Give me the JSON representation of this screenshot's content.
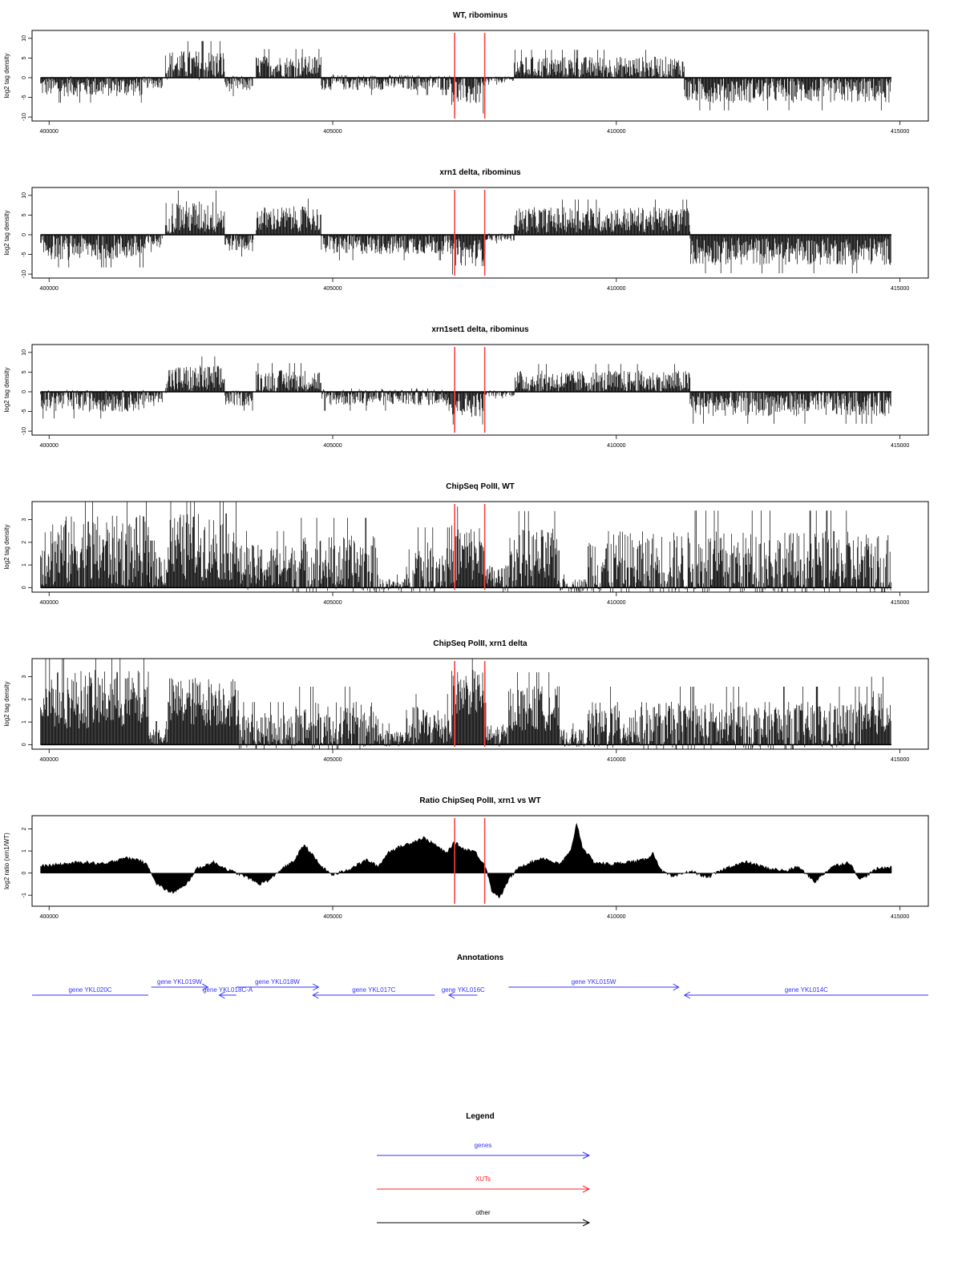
{
  "chart_data": [
    {
      "type": "bar",
      "title": "WT, ribominus",
      "ylabel": "log2 tag density",
      "ylim": [
        -11,
        12
      ],
      "yticks": [
        -10,
        -5,
        0,
        5,
        10
      ],
      "yticklabels": [
        "-10",
        "-5",
        "0",
        "5",
        "10"
      ],
      "xlim": [
        399700,
        415500
      ],
      "xticks": [
        400000,
        405000,
        410000,
        415000
      ],
      "xticklabels": [
        "400000",
        "405000",
        "410000",
        "415000"
      ],
      "marker_lines_x": [
        407150,
        407680
      ],
      "marker_color": "#ff4040",
      "segments": [
        {
          "x": [
            399850,
            401700
          ],
          "mean": -2.2,
          "amp": 2.6
        },
        {
          "x": [
            401700,
            402000
          ],
          "mean": -1.2,
          "amp": 1.5
        },
        {
          "x": [
            402050,
            403100
          ],
          "mean": 3.2,
          "amp": 3.8
        },
        {
          "x": [
            403100,
            403600
          ],
          "mean": -1.5,
          "amp": 2.0
        },
        {
          "x": [
            403650,
            404800
          ],
          "mean": 2.8,
          "amp": 2.8
        },
        {
          "x": [
            404800,
            407100
          ],
          "mean": -1.2,
          "amp": 2.0
        },
        {
          "x": [
            407100,
            407700
          ],
          "mean": -3.5,
          "amp": 3.5
        },
        {
          "x": [
            407700,
            408200
          ],
          "mean": -0.5,
          "amp": 0.8
        },
        {
          "x": [
            408200,
            411200
          ],
          "mean": 2.6,
          "amp": 2.8
        },
        {
          "x": [
            411200,
            414850
          ],
          "mean": -3.2,
          "amp": 3.2
        }
      ]
    },
    {
      "type": "bar",
      "title": "xrn1 delta, ribominus",
      "ylabel": "log2 tag density",
      "ylim": [
        -11,
        12
      ],
      "yticks": [
        -10,
        -5,
        0,
        5,
        10
      ],
      "yticklabels": [
        "-10",
        "-5",
        "0",
        "5",
        "10"
      ],
      "xlim": [
        399700,
        415500
      ],
      "xticks": [
        400000,
        405000,
        410000,
        415000
      ],
      "xticklabels": [
        "400000",
        "405000",
        "410000",
        "415000"
      ],
      "marker_lines_x": [
        407150,
        407680
      ],
      "marker_color": "#ff4040",
      "segments": [
        {
          "x": [
            399850,
            401700
          ],
          "mean": -3.2,
          "amp": 3.2
        },
        {
          "x": [
            401700,
            402000
          ],
          "mean": -1.5,
          "amp": 1.8
        },
        {
          "x": [
            402050,
            403100
          ],
          "mean": 4.5,
          "amp": 4.2
        },
        {
          "x": [
            403100,
            403600
          ],
          "mean": -2.0,
          "amp": 2.2
        },
        {
          "x": [
            403650,
            404800
          ],
          "mean": 4.0,
          "amp": 3.2
        },
        {
          "x": [
            404800,
            407100
          ],
          "mean": -2.5,
          "amp": 2.5
        },
        {
          "x": [
            407100,
            407700
          ],
          "mean": -4.5,
          "amp": 3.5
        },
        {
          "x": [
            407700,
            408200
          ],
          "mean": -0.6,
          "amp": 1.0
        },
        {
          "x": [
            408200,
            411300
          ],
          "mean": 3.8,
          "amp": 3.2
        },
        {
          "x": [
            411300,
            414850
          ],
          "mean": -4.2,
          "amp": 3.5
        }
      ]
    },
    {
      "type": "bar",
      "title": "xrn1set1 delta, ribominus",
      "ylabel": "log2 tag density",
      "ylim": [
        -11,
        12
      ],
      "yticks": [
        -10,
        -5,
        0,
        5,
        10
      ],
      "yticklabels": [
        "-10",
        "-5",
        "0",
        "5",
        "10"
      ],
      "xlim": [
        399700,
        415500
      ],
      "xticks": [
        400000,
        405000,
        410000,
        415000
      ],
      "xticklabels": [
        "400000",
        "405000",
        "410000",
        "415000"
      ],
      "marker_lines_x": [
        407150,
        407680
      ],
      "marker_color": "#ff4040",
      "segments": [
        {
          "x": [
            399850,
            401700
          ],
          "mean": -2.3,
          "amp": 2.8
        },
        {
          "x": [
            401700,
            402000
          ],
          "mean": -1.2,
          "amp": 1.5
        },
        {
          "x": [
            402050,
            403100
          ],
          "mean": 3.2,
          "amp": 3.6
        },
        {
          "x": [
            403100,
            403600
          ],
          "mean": -1.6,
          "amp": 2.0
        },
        {
          "x": [
            403650,
            404800
          ],
          "mean": 2.8,
          "amp": 2.8
        },
        {
          "x": [
            404800,
            407100
          ],
          "mean": -1.3,
          "amp": 2.2
        },
        {
          "x": [
            407100,
            407700
          ],
          "mean": -3.2,
          "amp": 3.2
        },
        {
          "x": [
            407700,
            408200
          ],
          "mean": -0.4,
          "amp": 0.8
        },
        {
          "x": [
            408200,
            411300
          ],
          "mean": 2.6,
          "amp": 2.8
        },
        {
          "x": [
            411300,
            414850
          ],
          "mean": -3.0,
          "amp": 3.2
        }
      ]
    },
    {
      "type": "bar",
      "title": "ChipSeq PolII, WT",
      "ylabel": "log2 tag density",
      "ylim": [
        -0.2,
        3.8
      ],
      "yticks": [
        0,
        1,
        2,
        3
      ],
      "yticklabels": [
        "0",
        "1",
        "2",
        "3"
      ],
      "xlim": [
        399700,
        415500
      ],
      "xticks": [
        400000,
        405000,
        410000,
        415000
      ],
      "xticklabels": [
        "400000",
        "405000",
        "410000",
        "415000"
      ],
      "marker_lines_x": [
        407150,
        407680
      ],
      "marker_color": "#ff4040",
      "segments": [
        {
          "x": [
            399850,
            401750
          ],
          "mean": 1.6,
          "amp": 1.6
        },
        {
          "x": [
            401750,
            402100
          ],
          "mean": 0.8,
          "amp": 0.8
        },
        {
          "x": [
            402100,
            403300
          ],
          "mean": 1.8,
          "amp": 1.5
        },
        {
          "x": [
            403300,
            404300
          ],
          "mean": 0.9,
          "amp": 1.0
        },
        {
          "x": [
            404300,
            405800
          ],
          "mean": 1.0,
          "amp": 1.3
        },
        {
          "x": [
            405800,
            406300
          ],
          "mean": 0.1,
          "amp": 0.3
        },
        {
          "x": [
            406300,
            407100
          ],
          "mean": 0.9,
          "amp": 1.1
        },
        {
          "x": [
            407100,
            407700
          ],
          "mean": 1.5,
          "amp": 1.3
        },
        {
          "x": [
            407700,
            408100
          ],
          "mean": 0.4,
          "amp": 0.6
        },
        {
          "x": [
            408100,
            409000
          ],
          "mean": 1.3,
          "amp": 1.3
        },
        {
          "x": [
            409000,
            409500
          ],
          "mean": 0.1,
          "amp": 0.3
        },
        {
          "x": [
            409500,
            414850
          ],
          "mean": 1.0,
          "amp": 1.5
        }
      ]
    },
    {
      "type": "bar",
      "title": "ChipSeq PolII, xrn1 delta",
      "ylabel": "log2 tag density",
      "ylim": [
        -0.2,
        3.8
      ],
      "yticks": [
        0,
        1,
        2,
        3
      ],
      "yticklabels": [
        "0",
        "1",
        "2",
        "3"
      ],
      "xlim": [
        399700,
        415500
      ],
      "xticks": [
        400000,
        405000,
        410000,
        415000
      ],
      "xticklabels": [
        "400000",
        "405000",
        "410000",
        "415000"
      ],
      "marker_lines_x": [
        407150,
        407680
      ],
      "marker_color": "#ff4040",
      "segments": [
        {
          "x": [
            399850,
            401750
          ],
          "mean": 2.0,
          "amp": 1.3
        },
        {
          "x": [
            401750,
            402100
          ],
          "mean": 0.4,
          "amp": 0.4
        },
        {
          "x": [
            402100,
            403350
          ],
          "mean": 1.9,
          "amp": 1.1
        },
        {
          "x": [
            403350,
            404350
          ],
          "mean": 0.6,
          "amp": 0.8
        },
        {
          "x": [
            404350,
            405800
          ],
          "mean": 0.8,
          "amp": 1.1
        },
        {
          "x": [
            405800,
            406300
          ],
          "mean": 0.3,
          "amp": 0.4
        },
        {
          "x": [
            406300,
            407100
          ],
          "mean": 0.8,
          "amp": 0.9
        },
        {
          "x": [
            407100,
            407700
          ],
          "mean": 2.3,
          "amp": 1.0
        },
        {
          "x": [
            407700,
            408100
          ],
          "mean": 0.4,
          "amp": 0.5
        },
        {
          "x": [
            408100,
            409000
          ],
          "mean": 1.6,
          "amp": 1.0
        },
        {
          "x": [
            409000,
            409500
          ],
          "mean": 0.3,
          "amp": 0.4
        },
        {
          "x": [
            409500,
            414500
          ],
          "mean": 0.8,
          "amp": 1.1
        },
        {
          "x": [
            414500,
            414850
          ],
          "mean": 1.4,
          "amp": 1.0
        }
      ]
    },
    {
      "type": "area",
      "title": "Ratio ChipSeq PolII, xrn1 vs WT",
      "ylabel": "log2 ratio (xrn1/WT)",
      "ylim": [
        -1.5,
        2.6
      ],
      "yticks": [
        -1,
        0,
        1,
        2
      ],
      "yticklabels": [
        "-1",
        "0",
        "1",
        "2"
      ],
      "xlim": [
        399700,
        415500
      ],
      "xticks": [
        400000,
        405000,
        410000,
        415000
      ],
      "xticklabels": [
        "400000",
        "405000",
        "410000",
        "415000"
      ],
      "marker_lines_x": [
        407150,
        407680
      ],
      "marker_color": "#ff4040",
      "x": [
        399850,
        400200,
        400600,
        401000,
        401300,
        401600,
        401750,
        401900,
        402150,
        402400,
        402600,
        402900,
        403200,
        403500,
        403700,
        403900,
        404100,
        404300,
        404500,
        404800,
        405000,
        405300,
        405600,
        405800,
        406000,
        406200,
        406400,
        406600,
        406800,
        407000,
        407150,
        407300,
        407500,
        407700,
        407800,
        407950,
        408100,
        408300,
        408500,
        408700,
        409000,
        409200,
        409300,
        409400,
        409600,
        409900,
        410200,
        410500,
        410650,
        410800,
        411000,
        411300,
        411600,
        412000,
        412300,
        412700,
        413000,
        413200,
        413500,
        413800,
        414100,
        414300,
        414600,
        414850
      ],
      "y": [
        0.3,
        0.4,
        0.5,
        0.4,
        0.7,
        0.6,
        0.3,
        -0.5,
        -0.9,
        -0.6,
        0.2,
        0.5,
        0.1,
        -0.2,
        -0.5,
        -0.3,
        0.2,
        0.5,
        1.3,
        0.3,
        -0.1,
        0.2,
        0.6,
        0.3,
        1.0,
        1.2,
        1.4,
        1.6,
        1.3,
        0.9,
        1.4,
        1.1,
        1.0,
        0.3,
        -0.8,
        -1.1,
        -0.3,
        0.3,
        0.5,
        0.7,
        0.4,
        1.0,
        2.3,
        1.2,
        0.5,
        0.4,
        0.5,
        0.6,
        0.9,
        0.1,
        -0.2,
        0.1,
        -0.2,
        0.3,
        0.5,
        0.2,
        0.1,
        0.3,
        -0.4,
        0.3,
        0.5,
        -0.3,
        0.2,
        0.3
      ]
    }
  ],
  "annotations": {
    "title": "Annotations",
    "xlim": [
      399700,
      415500
    ],
    "genes": [
      {
        "label": "gene YKL020C",
        "start": 399700,
        "end": 401750,
        "strand": "-",
        "row": "bottom"
      },
      {
        "label": "gene YKL019W",
        "start": 401800,
        "end": 402800,
        "strand": "+",
        "row": "top"
      },
      {
        "label": "gene YKL018C-A",
        "start": 403000,
        "end": 403300,
        "strand": "-",
        "row": "bottom"
      },
      {
        "label": "gene YKL018W",
        "start": 403300,
        "end": 404750,
        "strand": "+",
        "row": "top"
      },
      {
        "label": "gene YKL017C",
        "start": 404650,
        "end": 406800,
        "strand": "-",
        "row": "bottom"
      },
      {
        "label": "gene YKL016C",
        "start": 407050,
        "end": 407550,
        "strand": "-",
        "row": "bottom"
      },
      {
        "label": "gene YKL015W",
        "start": 408100,
        "end": 411100,
        "strand": "+",
        "row": "top"
      },
      {
        "label": "gene YKL014C",
        "start": 411200,
        "end": 415500,
        "strand": "-",
        "row": "bottom"
      }
    ],
    "gene_color": "#3333ff"
  },
  "legend": {
    "title": "Legend",
    "items": [
      {
        "label": "genes",
        "color": "#3333ff"
      },
      {
        "label": "XUTs",
        "color": "#ff2020"
      },
      {
        "label": "other",
        "color": "#000000"
      }
    ]
  }
}
